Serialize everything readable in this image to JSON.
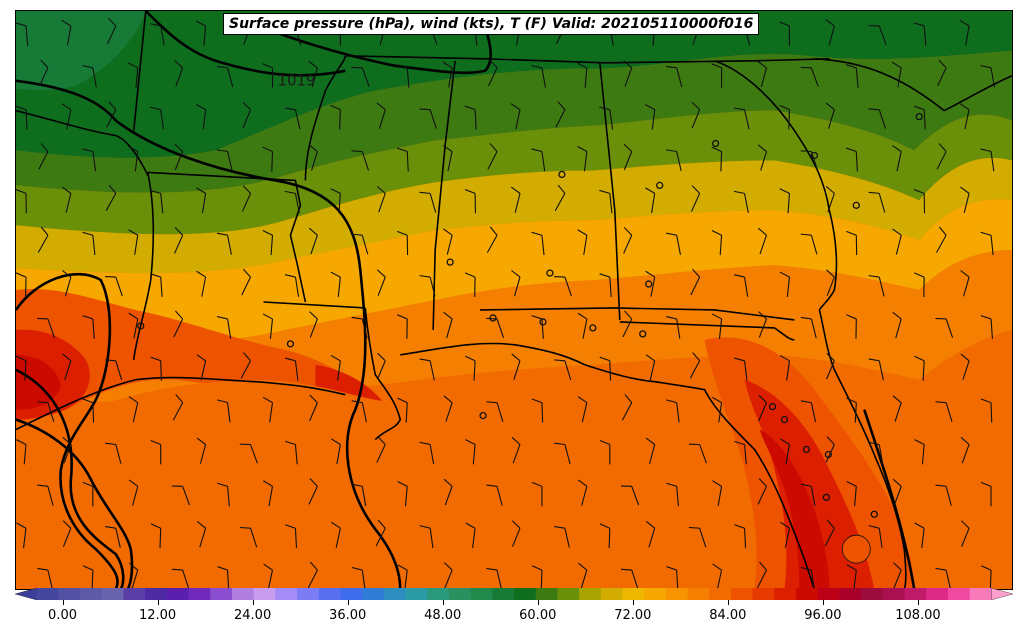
{
  "title": "Surface pressure (hPa), wind (kts), T (F) Valid: 202105110000f016",
  "isobar_labels": [
    "1019"
  ],
  "colorbar": {
    "tick_labels": [
      "0.00",
      "12.00",
      "24.00",
      "36.00",
      "48.00",
      "60.00",
      "72.00",
      "84.00",
      "96.00",
      "108.00"
    ],
    "tick_values": [
      0,
      12,
      24,
      36,
      48,
      60,
      72,
      84,
      96,
      108
    ],
    "range": [
      -6,
      120
    ],
    "step": 3,
    "colors": [
      "#3b3f9a",
      "#45479e",
      "#5251a3",
      "#5e5aa8",
      "#6a63ad",
      "#5a3fa8",
      "#4e2aa3",
      "#5b1fae",
      "#7029bd",
      "#8a4fd0",
      "#b07fe0",
      "#c89df0",
      "#a38cf5",
      "#7c7cf5",
      "#5a6ff0",
      "#3e6cea",
      "#2f7bd6",
      "#2f8ec0",
      "#2a9aa4",
      "#2a9a7a",
      "#2a9060",
      "#1f8a4c",
      "#177a36",
      "#0e6e1e",
      "#3e7a12",
      "#6a8f08",
      "#a7a300",
      "#d2ac00",
      "#eeb800",
      "#f6a800",
      "#f79400",
      "#f57f00",
      "#f26b00",
      "#ee5300",
      "#e73a00",
      "#dc1f00",
      "#cc0a00",
      "#bb0018",
      "#a8002a",
      "#9c0c3c",
      "#a81050",
      "#c01a6a",
      "#dd2a86",
      "#ef4aa0",
      "#f97ab8",
      "#fc9fcc"
    ]
  },
  "temperature_fields": {
    "main_band_colors": [
      "#0e6e1e",
      "#3e7a12",
      "#6a8f08",
      "#a7a300",
      "#d2ac00",
      "#eeb800",
      "#f6a800",
      "#f79400",
      "#f57f00",
      "#f26b00"
    ],
    "hot_colors": [
      "#ee5300",
      "#dc1f00",
      "#cc0a00"
    ]
  },
  "stations_shown": 22,
  "barbs_shown": true
}
